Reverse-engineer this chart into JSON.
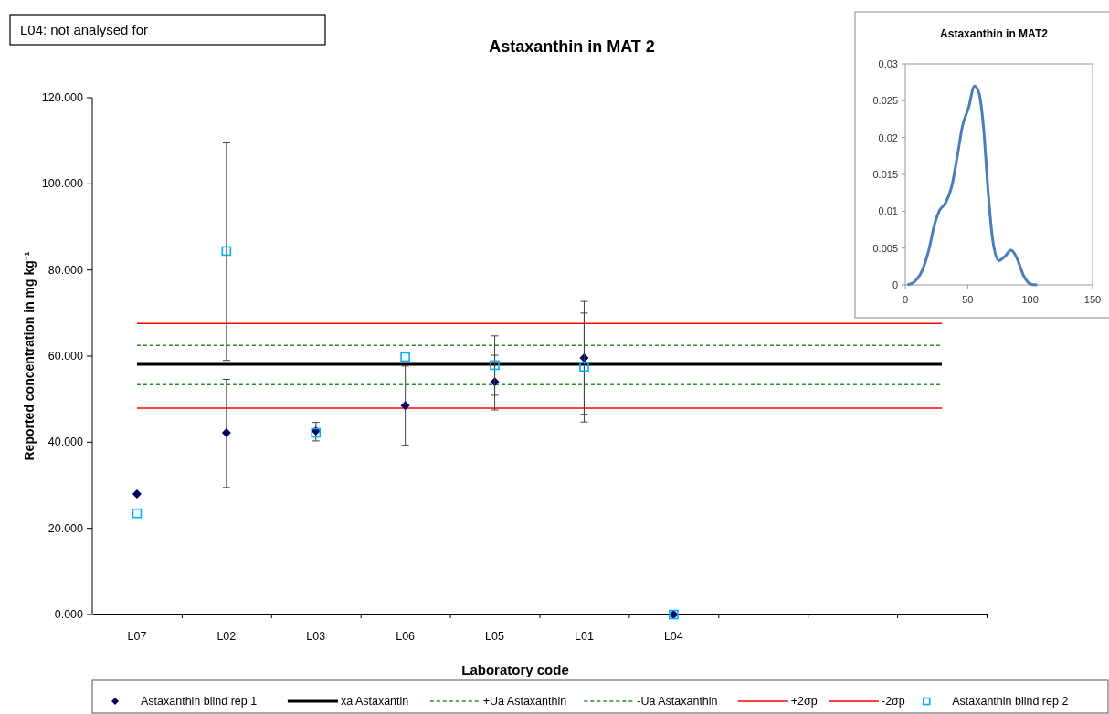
{
  "chart_data": [
    {
      "type": "scatter",
      "title": "Astaxanthin in MAT 2",
      "xlabel": "Laboratory code",
      "ylabel": "Reported concentration in mg kg⁻¹",
      "annotations": [
        "L04: not analysed for"
      ],
      "categories": [
        "L07",
        "L02",
        "L03",
        "L06",
        "L05",
        "L01",
        "L04",
        null,
        null,
        null
      ],
      "ylim": [
        0,
        120
      ],
      "yticks": [
        {
          "value": 0,
          "label": "0.000"
        },
        {
          "value": 20,
          "label": "20.000"
        },
        {
          "value": 40,
          "label": "40.000"
        },
        {
          "value": 60,
          "label": "60.000"
        },
        {
          "value": 80,
          "label": "80.000"
        },
        {
          "value": 100,
          "label": "100.000"
        },
        {
          "value": 120,
          "label": "120.000"
        }
      ],
      "legend": "bottom",
      "grid": false,
      "series": [
        {
          "name": "Astaxanthin blind rep 1",
          "type": "scatter",
          "marker": "diamond",
          "color": "#000066",
          "values": [
            28.0,
            42.2,
            42.6,
            48.5,
            54.0,
            59.6,
            0,
            null,
            null,
            null
          ],
          "errors": [
            null,
            [
              29.5,
              54.6
            ],
            [
              40.3,
              44.6
            ],
            [
              39.3,
              57.7
            ],
            [
              47.5,
              60.2
            ],
            [
              46.5,
              72.7
            ],
            null,
            null,
            null,
            null
          ]
        },
        {
          "name": "xa Astaxantin",
          "type": "line",
          "marker": "none",
          "line_style": "solid",
          "color": "#000000",
          "values": [
            58.1,
            58.1,
            58.1,
            58.1,
            58.1,
            58.1,
            58.1,
            58.1,
            58.1,
            58.1
          ]
        },
        {
          "name": "+Ua Astaxanthin",
          "type": "line",
          "marker": "none",
          "line_style": "dashed",
          "color": "#2e8b2e",
          "values": [
            62.5,
            62.5,
            62.5,
            62.5,
            62.5,
            62.5,
            62.5,
            62.5,
            62.5,
            62.5
          ]
        },
        {
          "name": "-Ua Astaxanthin",
          "type": "line",
          "marker": "none",
          "line_style": "dashed",
          "color": "#2e8b2e",
          "values": [
            53.4,
            53.4,
            53.4,
            53.4,
            53.4,
            53.4,
            53.4,
            53.4,
            53.4,
            53.4
          ]
        },
        {
          "name": "+2σp",
          "type": "line",
          "marker": "none",
          "line_style": "solid",
          "color": "#ff0000",
          "values": [
            67.6,
            67.6,
            67.6,
            67.6,
            67.6,
            67.6,
            67.6,
            67.6,
            67.6,
            67.6
          ]
        },
        {
          "name": "-2σp",
          "type": "line",
          "marker": "none",
          "line_style": "solid",
          "color": "#ff0000",
          "values": [
            47.9,
            47.9,
            47.9,
            47.9,
            47.9,
            47.9,
            47.9,
            47.9,
            47.9,
            47.9
          ]
        },
        {
          "name": "Astaxanthin blind rep 2",
          "type": "scatter",
          "marker": "square",
          "color": "#00b0f0",
          "values": [
            23.5,
            84.4,
            42.2,
            59.8,
            57.9,
            57.5,
            0,
            null,
            null,
            null
          ],
          "errors": [
            null,
            [
              59.0,
              109.5
            ],
            null,
            null,
            [
              50.9,
              64.7
            ],
            [
              44.7,
              70.0
            ],
            null,
            null,
            null,
            null
          ]
        }
      ]
    },
    {
      "type": "line",
      "title": "Astaxanthin in MAT2",
      "xlim": [
        0,
        150
      ],
      "xticks": [
        0,
        50,
        100,
        150
      ],
      "ylim": [
        0,
        0.03
      ],
      "yticks": [
        0,
        0.005,
        0.01,
        0.015,
        0.02,
        0.025,
        0.03
      ],
      "legend": false,
      "grid": false,
      "series": [
        {
          "color": "#4a7ebb",
          "x": [
            1.7,
            7.8,
            13.9,
            18.8,
            23.7,
            27.4,
            32.2,
            37.1,
            42,
            45.7,
            50.6,
            55.5,
            59.1,
            62.8,
            66.4,
            70.1,
            75,
            79.9,
            84.8,
            89.7,
            94.6,
            100.7,
            105.6
          ],
          "values": [
            0,
            0.0005,
            0.0021,
            0.0047,
            0.0084,
            0.0101,
            0.0111,
            0.0133,
            0.0178,
            0.0215,
            0.024,
            0.027,
            0.026,
            0.0211,
            0.0125,
            0.006,
            0.0033,
            0.0039,
            0.0047,
            0.0035,
            0.0013,
            0.0001,
            0
          ]
        }
      ]
    }
  ]
}
